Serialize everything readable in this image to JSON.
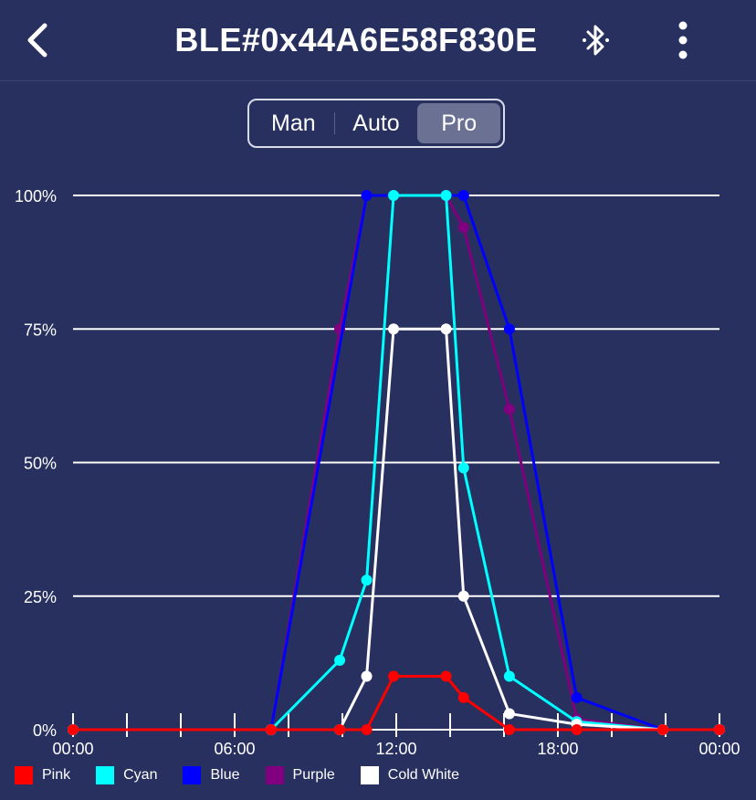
{
  "header": {
    "title": "BLE#0x44A6E58F830E",
    "back_icon": "chevron-left-icon",
    "bluetooth_icon": "bluetooth-icon",
    "more_icon": "more-vertical-icon"
  },
  "mode_tabs": [
    {
      "label": "Man",
      "active": false
    },
    {
      "label": "Auto",
      "active": false
    },
    {
      "label": "Pro",
      "active": true
    }
  ],
  "chart_data": {
    "type": "line",
    "title": "",
    "xlabel": "",
    "ylabel": "",
    "x_unit": "hour",
    "xlim": [
      0,
      24
    ],
    "ylim": [
      0,
      100
    ],
    "x_tick_labels": [
      "00:00",
      "06:00",
      "12:00",
      "18:00",
      "00:00"
    ],
    "x_tick_values": [
      0,
      6,
      12,
      18,
      24
    ],
    "y_tick_labels": [
      "0%",
      "25%",
      "50%",
      "75%",
      "100%"
    ],
    "y_tick_values": [
      0,
      25,
      50,
      75,
      100
    ],
    "grid": "horizontal",
    "legend_position": "bottom",
    "series": [
      {
        "name": "Purple",
        "color": "#800080",
        "points": [
          [
            0,
            0
          ],
          [
            7.35,
            0
          ],
          [
            9.9,
            75
          ],
          [
            10.9,
            100
          ],
          [
            11.9,
            100
          ],
          [
            13.85,
            100
          ],
          [
            14.5,
            94
          ],
          [
            16.2,
            60
          ],
          [
            18.7,
            2
          ],
          [
            21.9,
            0
          ],
          [
            24,
            0
          ]
        ]
      },
      {
        "name": "Blue",
        "color": "#0000ff",
        "points": [
          [
            0,
            0
          ],
          [
            7.35,
            0
          ],
          [
            10.9,
            100
          ],
          [
            13.85,
            100
          ],
          [
            14.5,
            100
          ],
          [
            16.2,
            75
          ],
          [
            18.7,
            6
          ],
          [
            21.9,
            0
          ],
          [
            24,
            0
          ]
        ]
      },
      {
        "name": "Cyan",
        "color": "#00ffff",
        "points": [
          [
            0,
            0
          ],
          [
            7.35,
            0
          ],
          [
            9.9,
            13
          ],
          [
            10.9,
            28
          ],
          [
            11.9,
            100
          ],
          [
            13.85,
            100
          ],
          [
            14.5,
            49
          ],
          [
            16.2,
            10
          ],
          [
            18.7,
            1.5
          ],
          [
            21.9,
            0
          ],
          [
            24,
            0
          ]
        ]
      },
      {
        "name": "Cold White",
        "color": "#ffffff",
        "points": [
          [
            0,
            0
          ],
          [
            7.35,
            0
          ],
          [
            9.9,
            0
          ],
          [
            10.9,
            10
          ],
          [
            11.9,
            75
          ],
          [
            13.85,
            75
          ],
          [
            14.5,
            25
          ],
          [
            16.2,
            3
          ],
          [
            18.7,
            1
          ],
          [
            21.9,
            0
          ],
          [
            24,
            0
          ]
        ]
      },
      {
        "name": "Pink",
        "color": "#ff0000",
        "points": [
          [
            0,
            0
          ],
          [
            7.35,
            0
          ],
          [
            9.9,
            0
          ],
          [
            10.9,
            0
          ],
          [
            11.9,
            10
          ],
          [
            13.85,
            10
          ],
          [
            14.5,
            6
          ],
          [
            16.2,
            0
          ],
          [
            18.7,
            0
          ],
          [
            21.9,
            0
          ],
          [
            24,
            0
          ]
        ]
      }
    ]
  },
  "legend": [
    {
      "label": "Pink",
      "color": "#ff0000"
    },
    {
      "label": "Cyan",
      "color": "#00ffff"
    },
    {
      "label": "Blue",
      "color": "#0000ff"
    },
    {
      "label": "Purple",
      "color": "#800080"
    },
    {
      "label": "Cold White",
      "color": "#ffffff"
    }
  ]
}
